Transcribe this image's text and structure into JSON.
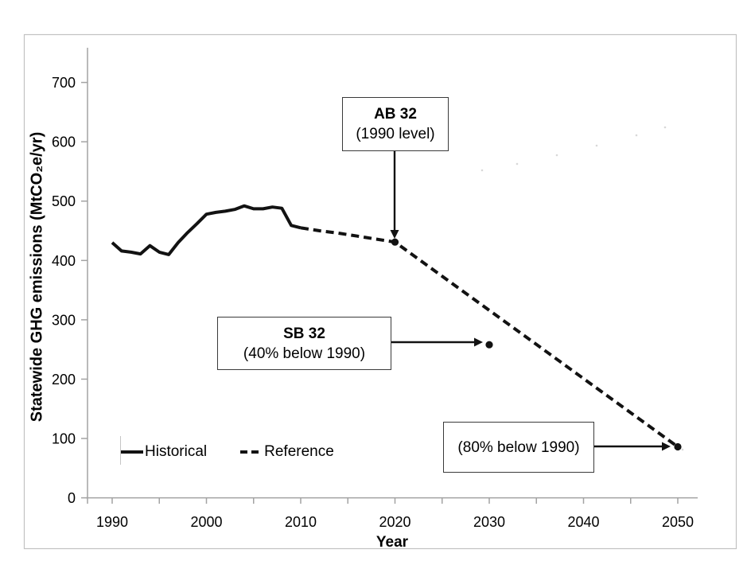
{
  "figure": {
    "background": "#ffffff",
    "border_color": "#c2c2c2",
    "axis_color": "#a3a3a3",
    "line_color": "#121212"
  },
  "chart_data": {
    "type": "line",
    "title": "",
    "xlabel": "Year",
    "ylabel": "Statewide GHG emissions (MtCO₂e/yr)",
    "xlim": [
      1987.4,
      2052.4
    ],
    "ylim": [
      0,
      757
    ],
    "grid": false,
    "legend_position": "inside-bottom-left",
    "x_major_ticks": [
      1990,
      2000,
      2010,
      2020,
      2030,
      2040,
      2050
    ],
    "x_all_ticks": [
      1990,
      1995,
      2000,
      2005,
      2010,
      2015,
      2020,
      2025,
      2030,
      2035,
      2040,
      2045,
      2050
    ],
    "y_ticks": [
      0,
      100,
      200,
      300,
      400,
      500,
      600,
      700
    ],
    "series": [
      {
        "name": "Historical",
        "style": "solid",
        "x": [
          1990,
          1991,
          1992,
          1993,
          1994,
          1995,
          1996,
          1997,
          1998,
          1999,
          2000,
          2001,
          2002,
          2003,
          2004,
          2005,
          2006,
          2007,
          2008,
          2009,
          2010
        ],
        "values": [
          430,
          416,
          414,
          411,
          425,
          414,
          410,
          430,
          447,
          462,
          478,
          481,
          483,
          486,
          492,
          487,
          487,
          490,
          488,
          459,
          455
        ]
      },
      {
        "name": "Reference",
        "style": "dashed",
        "x": [
          2010,
          2012,
          2014,
          2016,
          2018,
          2020,
          2050
        ],
        "values": [
          455,
          450,
          446,
          441,
          436,
          431,
          86
        ]
      }
    ],
    "markers": [
      {
        "x": 2020,
        "value": 431,
        "label": "AB 32 (1990 level)"
      },
      {
        "x": 2030,
        "value": 258,
        "label": "SB 32 (40% below 1990)"
      },
      {
        "x": 2050,
        "value": 86,
        "label": "(80% below 1990)"
      }
    ]
  },
  "annotations": {
    "ab32": {
      "title": "AB 32",
      "subtitle": "(1990 level)"
    },
    "sb32": {
      "title": "SB 32",
      "subtitle": "(40% below 1990)"
    },
    "below80": {
      "line": "(80% below 1990)"
    }
  },
  "legend": {
    "items": [
      {
        "label": "Historical",
        "style": "solid"
      },
      {
        "label": "Reference",
        "style": "dashed"
      }
    ]
  },
  "axes": {
    "x_title": "Year",
    "y_title": "Statewide GHG emissions (MtCO₂e/yr)"
  }
}
